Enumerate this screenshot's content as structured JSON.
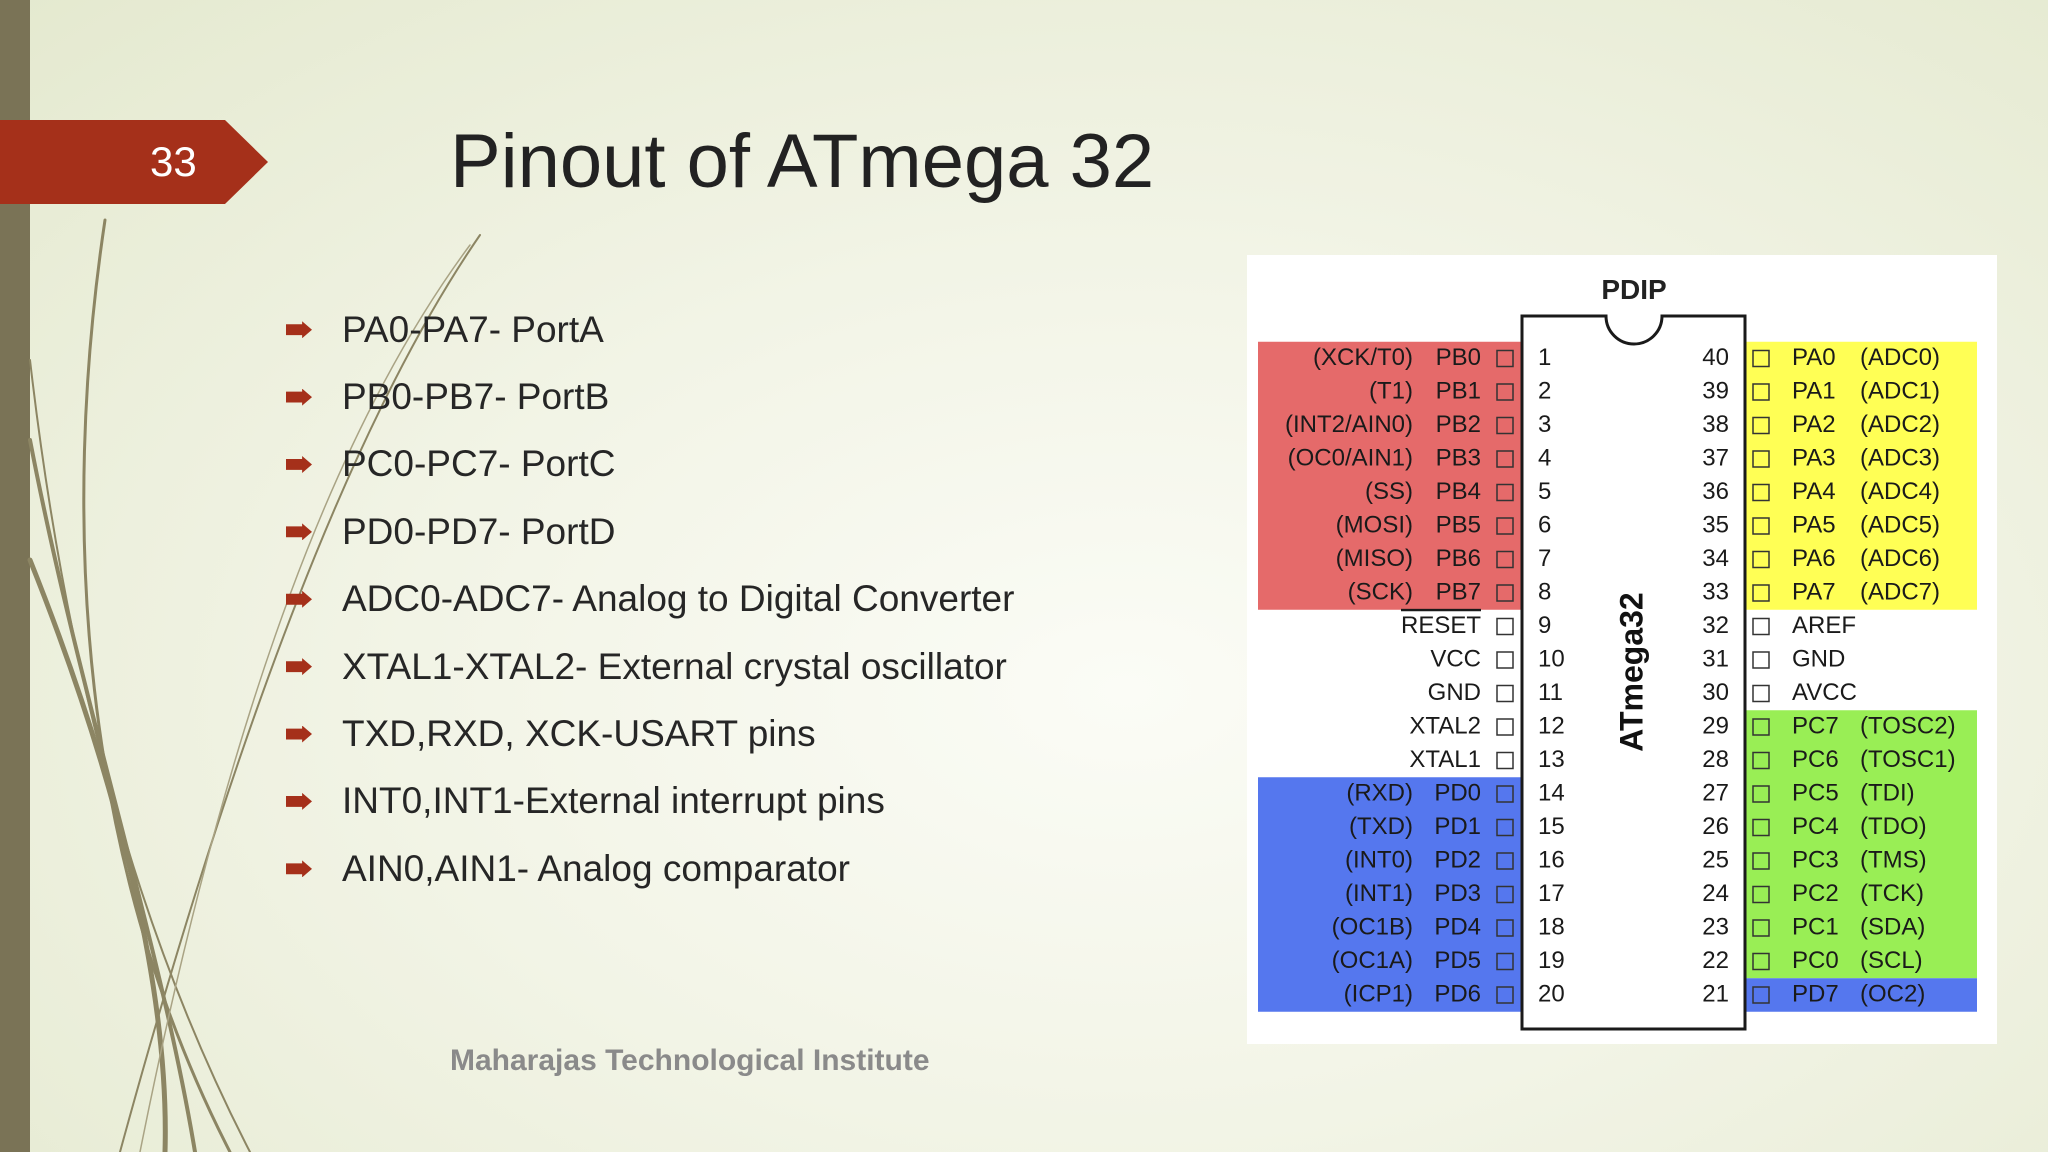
{
  "slide": {
    "number": "33",
    "title": "Pinout of ATmega 32",
    "footer": "Maharajas Technological Institute"
  },
  "bullets": [
    "PA0-PA7- PortA",
    "PB0-PB7- PortB",
    "PC0-PC7- PortC",
    "PD0-PD7- PortD",
    "ADC0-ADC7- Analog to Digital Converter",
    "XTAL1-XTAL2- External crystal oscillator",
    "TXD,RXD, XCK-USART pins",
    "INT0,INT1-External interrupt pins",
    "AIN0,AIN1- Analog comparator"
  ],
  "pinout": {
    "package_label": "PDIP",
    "chip_label": "ATmega32",
    "colors": {
      "red": "#e56a6a",
      "yellow": "#ffff55",
      "green": "#99ee55",
      "blue": "#5577ee",
      "accent": "#a5301a"
    },
    "left_pins": [
      {
        "num": "1",
        "name": "PB0",
        "alt": "(XCK/T0)",
        "group": "red"
      },
      {
        "num": "2",
        "name": "PB1",
        "alt": "(T1)",
        "group": "red"
      },
      {
        "num": "3",
        "name": "PB2",
        "alt": "(INT2/AIN0)",
        "group": "red"
      },
      {
        "num": "4",
        "name": "PB3",
        "alt": "(OC0/AIN1)",
        "group": "red"
      },
      {
        "num": "5",
        "name": "PB4",
        "alt": "(SS)",
        "group": "red"
      },
      {
        "num": "6",
        "name": "PB5",
        "alt": "(MOSI)",
        "group": "red"
      },
      {
        "num": "7",
        "name": "PB6",
        "alt": "(MISO)",
        "group": "red"
      },
      {
        "num": "8",
        "name": "PB7",
        "alt": "(SCK)",
        "group": "red"
      },
      {
        "num": "9",
        "name": "RESET",
        "alt": "",
        "group": "none"
      },
      {
        "num": "10",
        "name": "VCC",
        "alt": "",
        "group": "none"
      },
      {
        "num": "11",
        "name": "GND",
        "alt": "",
        "group": "none"
      },
      {
        "num": "12",
        "name": "XTAL2",
        "alt": "",
        "group": "none"
      },
      {
        "num": "13",
        "name": "XTAL1",
        "alt": "",
        "group": "none"
      },
      {
        "num": "14",
        "name": "PD0",
        "alt": "(RXD)",
        "group": "blue"
      },
      {
        "num": "15",
        "name": "PD1",
        "alt": "(TXD)",
        "group": "blue"
      },
      {
        "num": "16",
        "name": "PD2",
        "alt": "(INT0)",
        "group": "blue"
      },
      {
        "num": "17",
        "name": "PD3",
        "alt": "(INT1)",
        "group": "blue"
      },
      {
        "num": "18",
        "name": "PD4",
        "alt": "(OC1B)",
        "group": "blue"
      },
      {
        "num": "19",
        "name": "PD5",
        "alt": "(OC1A)",
        "group": "blue"
      },
      {
        "num": "20",
        "name": "PD6",
        "alt": "(ICP1)",
        "group": "blue"
      }
    ],
    "right_pins": [
      {
        "num": "40",
        "name": "PA0",
        "alt": "(ADC0)",
        "group": "yellow"
      },
      {
        "num": "39",
        "name": "PA1",
        "alt": "(ADC1)",
        "group": "yellow"
      },
      {
        "num": "38",
        "name": "PA2",
        "alt": "(ADC2)",
        "group": "yellow"
      },
      {
        "num": "37",
        "name": "PA3",
        "alt": "(ADC3)",
        "group": "yellow"
      },
      {
        "num": "36",
        "name": "PA4",
        "alt": "(ADC4)",
        "group": "yellow"
      },
      {
        "num": "35",
        "name": "PA5",
        "alt": "(ADC5)",
        "group": "yellow"
      },
      {
        "num": "34",
        "name": "PA6",
        "alt": "(ADC6)",
        "group": "yellow"
      },
      {
        "num": "33",
        "name": "PA7",
        "alt": "(ADC7)",
        "group": "yellow"
      },
      {
        "num": "32",
        "name": "AREF",
        "alt": "",
        "group": "none"
      },
      {
        "num": "31",
        "name": "GND",
        "alt": "",
        "group": "none"
      },
      {
        "num": "30",
        "name": "AVCC",
        "alt": "",
        "group": "none"
      },
      {
        "num": "29",
        "name": "PC7",
        "alt": "(TOSC2)",
        "group": "green"
      },
      {
        "num": "28",
        "name": "PC6",
        "alt": "(TOSC1)",
        "group": "green"
      },
      {
        "num": "27",
        "name": "PC5",
        "alt": "(TDI)",
        "group": "green"
      },
      {
        "num": "26",
        "name": "PC4",
        "alt": "(TDO)",
        "group": "green"
      },
      {
        "num": "25",
        "name": "PC3",
        "alt": "(TMS)",
        "group": "green"
      },
      {
        "num": "24",
        "name": "PC2",
        "alt": "(TCK)",
        "group": "green"
      },
      {
        "num": "23",
        "name": "PC1",
        "alt": "(SDA)",
        "group": "green"
      },
      {
        "num": "22",
        "name": "PC0",
        "alt": "(SCL)",
        "group": "green"
      },
      {
        "num": "21",
        "name": "PD7",
        "alt": "(OC2)",
        "group": "blue"
      }
    ]
  }
}
